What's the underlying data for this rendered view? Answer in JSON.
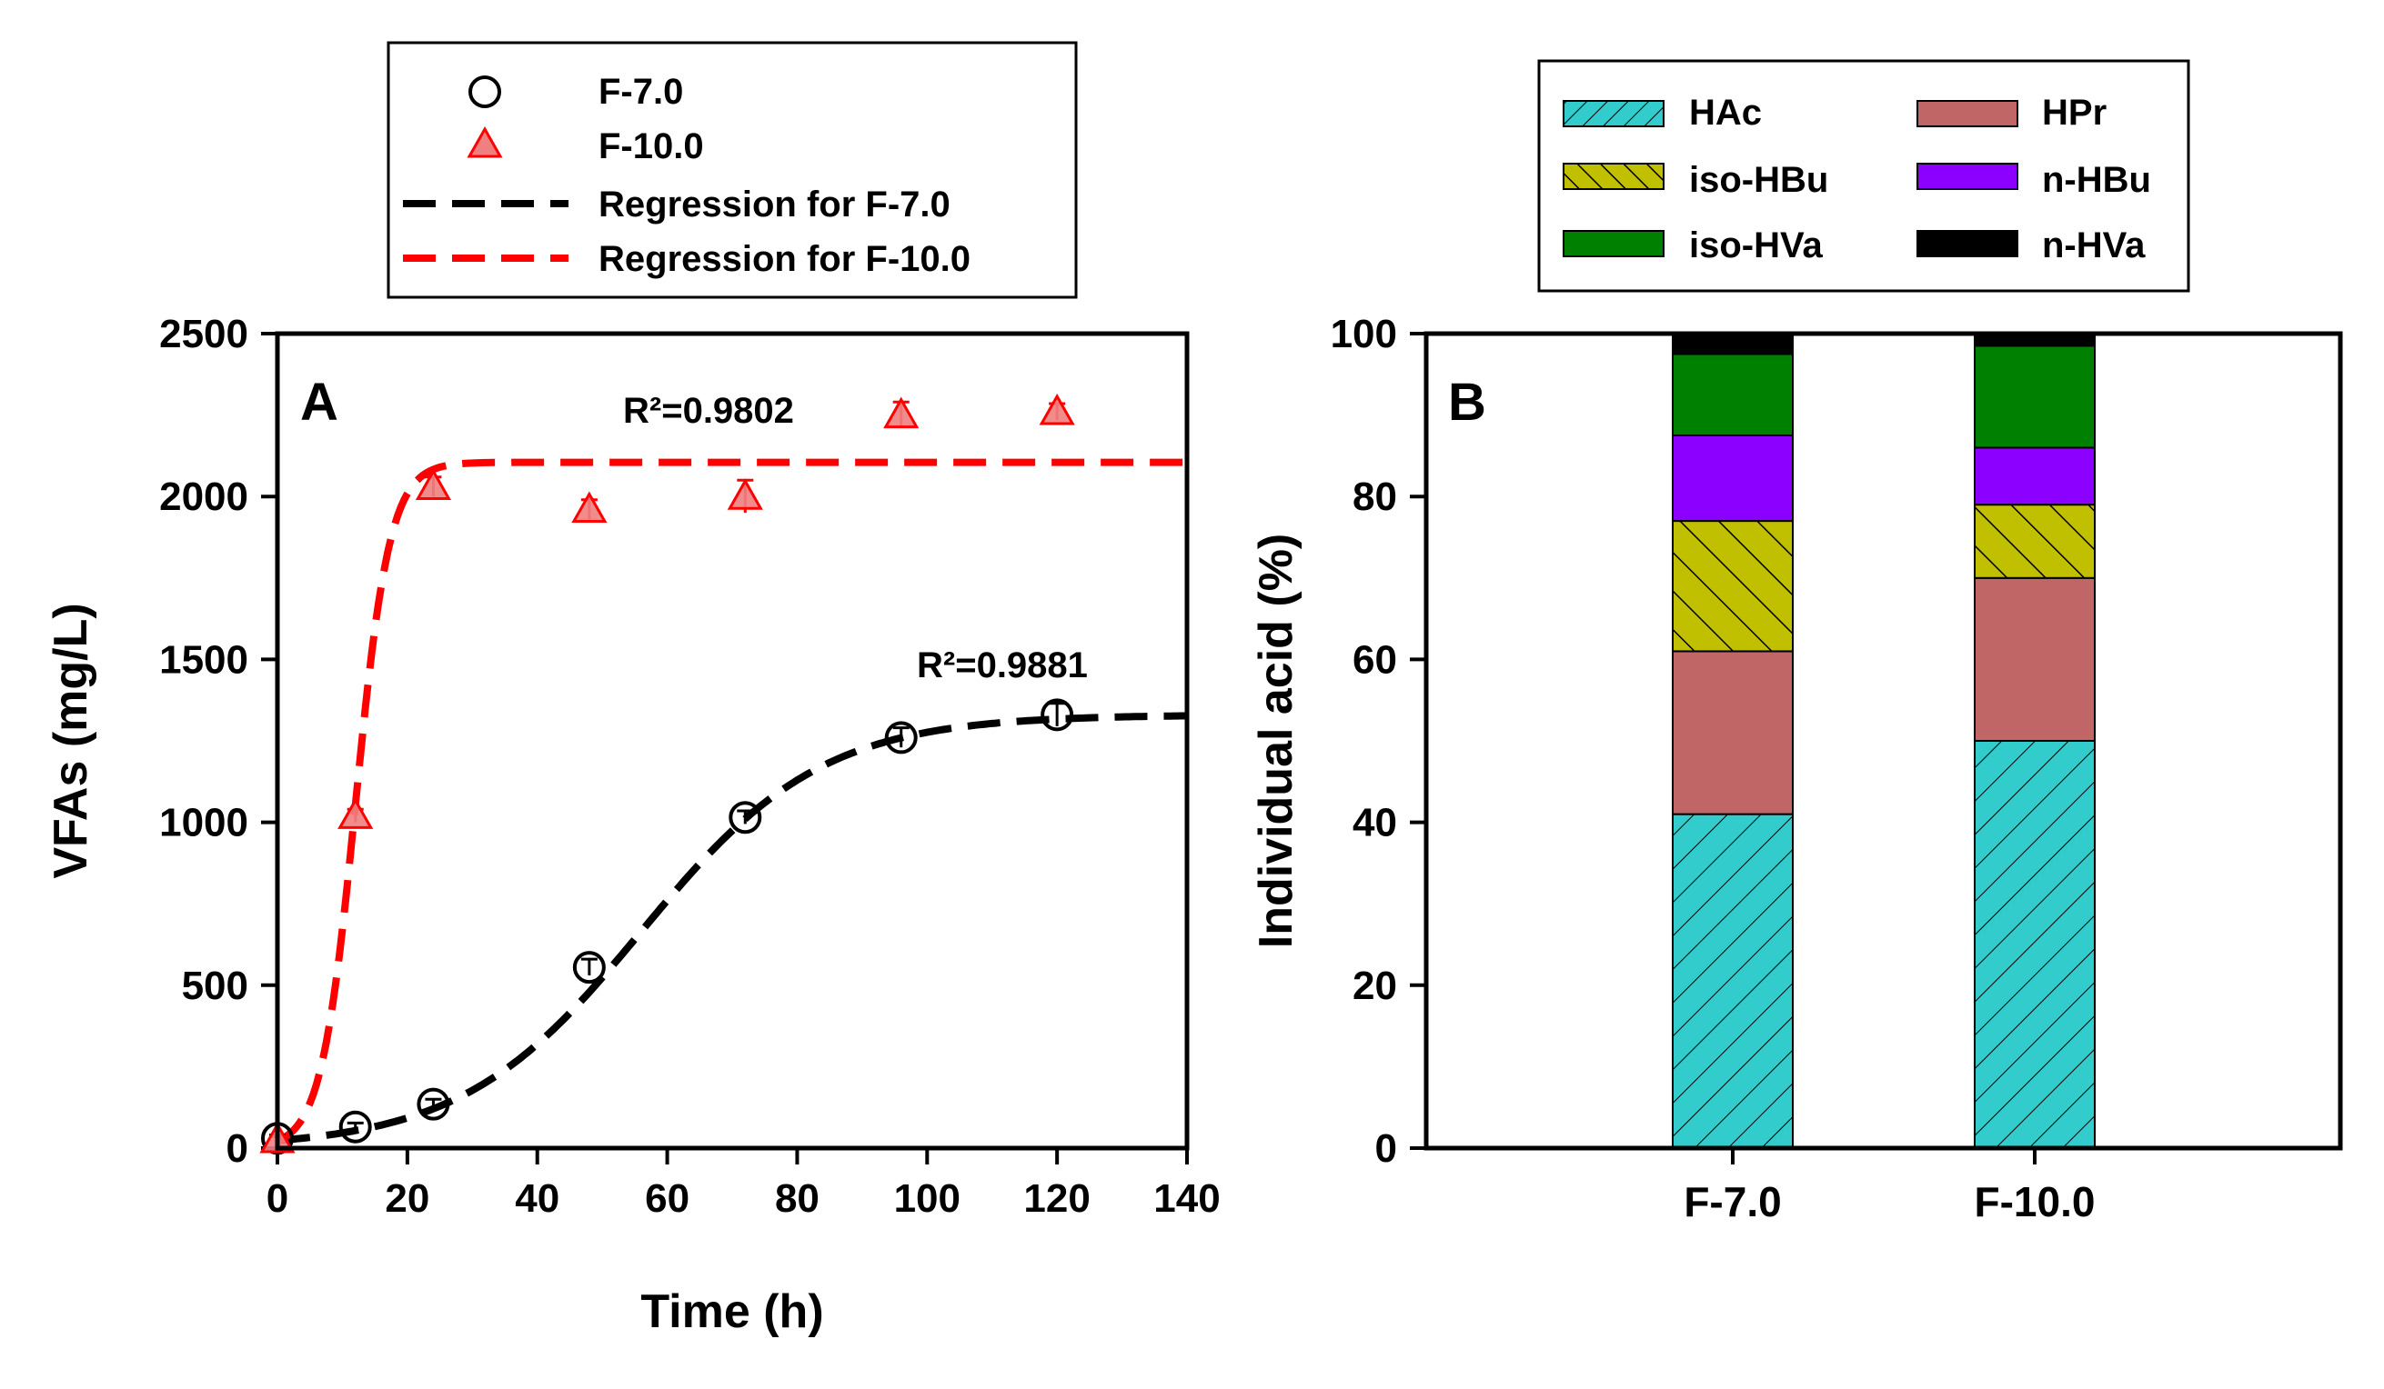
{
  "chart_data": [
    {
      "type": "scatter",
      "panel_label": "A",
      "xlabel": "Time (h)",
      "ylabel": "VFAs (mg/L)",
      "xlim": [
        0,
        140
      ],
      "ylim": [
        0,
        2500
      ],
      "xticks": [
        "0",
        "20",
        "40",
        "60",
        "80",
        "100",
        "120",
        "140"
      ],
      "yticks": [
        "0",
        "500",
        "1000",
        "1500",
        "2000",
        "2500"
      ],
      "series": [
        {
          "name": "F-7.0",
          "marker": "circle",
          "color": "#000000",
          "x": [
            0,
            12,
            24,
            48,
            72,
            96,
            120
          ],
          "y": [
            30,
            65,
            135,
            555,
            1015,
            1260,
            1330
          ],
          "err": [
            10,
            12,
            15,
            25,
            20,
            30,
            35
          ]
        },
        {
          "name": "F-10.0",
          "marker": "triangle",
          "color": "#ff0000",
          "x": [
            0,
            12,
            24,
            48,
            72,
            96,
            120
          ],
          "y": [
            25,
            1020,
            2030,
            1960,
            2000,
            2250,
            2260
          ],
          "err": [
            10,
            20,
            30,
            30,
            50,
            40,
            25
          ]
        }
      ],
      "regressions": [
        {
          "name": "Regression for F-7.0",
          "color": "#000000",
          "model": "logistic",
          "ymax": 1330,
          "rate": 0.072,
          "t_mid": 56,
          "r2_label": "R²=0.9881"
        },
        {
          "name": "Regression for F-10.0",
          "color": "#ff0000",
          "model": "logistic",
          "ymax": 2105,
          "rate": 0.38,
          "t_mid": 12,
          "r2_label": "R²=0.9802"
        }
      ],
      "legend": [
        "F-7.0",
        "F-10.0",
        "Regression for F-7.0",
        "Regression for F-10.0"
      ],
      "legend_position": "top-center"
    },
    {
      "type": "bar",
      "stacked": true,
      "panel_label": "B",
      "ylabel": "Individual acid (%)",
      "ylim": [
        0,
        100
      ],
      "yticks": [
        "0",
        "20",
        "40",
        "60",
        "80",
        "100"
      ],
      "categories": [
        "F-7.0",
        "F-10.0"
      ],
      "series": [
        {
          "name": "HAc",
          "color": "#33cccc",
          "hatch": "diag-right",
          "values": [
            41,
            50
          ]
        },
        {
          "name": "HPr",
          "color": "#c06666",
          "hatch": "none",
          "values": [
            20,
            20
          ]
        },
        {
          "name": "iso-HBu",
          "color": "#c0c000",
          "hatch": "diag-left",
          "values": [
            16,
            9
          ]
        },
        {
          "name": "n-HBu",
          "color": "#8b00ff",
          "hatch": "none",
          "values": [
            10.5,
            7
          ]
        },
        {
          "name": "iso-HVa",
          "color": "#008000",
          "hatch": "none",
          "values": [
            10,
            12.5
          ]
        },
        {
          "name": "n-HVa",
          "color": "#000000",
          "hatch": "none",
          "values": [
            2.5,
            1.5
          ]
        }
      ],
      "legend": [
        "HAc",
        "HPr",
        "iso-HBu",
        "n-HBu",
        "iso-HVa",
        "n-HVa"
      ],
      "legend_position": "top"
    }
  ]
}
